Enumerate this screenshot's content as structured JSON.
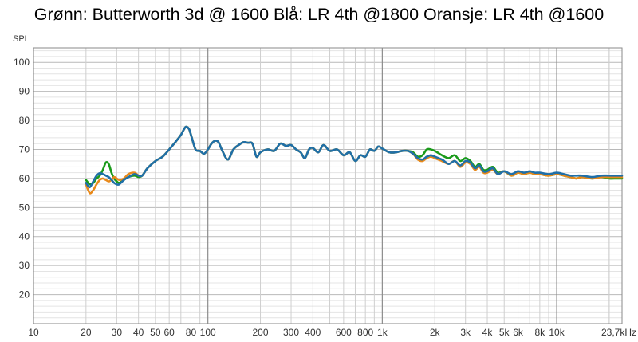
{
  "chart_data": {
    "type": "line",
    "title": "Grønn: Butterworth 3d @ 1600 Blå: LR 4th @1800 Oransje: LR 4th @1600",
    "ylabel": "SPL",
    "xlabel": "",
    "xscale": "log",
    "xlim": [
      10,
      23700
    ],
    "ylim": [
      10,
      105
    ],
    "grid": true,
    "legend": "none",
    "y_ticks": [
      20,
      30,
      40,
      50,
      60,
      70,
      80,
      90,
      100
    ],
    "x_ticks": [
      {
        "v": 10,
        "label": "10"
      },
      {
        "v": 20,
        "label": "20"
      },
      {
        "v": 30,
        "label": "30"
      },
      {
        "v": 40,
        "label": "40"
      },
      {
        "v": 50,
        "label": "50"
      },
      {
        "v": 60,
        "label": "60"
      },
      {
        "v": 80,
        "label": "80"
      },
      {
        "v": 100,
        "label": "100"
      },
      {
        "v": 200,
        "label": "200"
      },
      {
        "v": 300,
        "label": "300"
      },
      {
        "v": 400,
        "label": "400"
      },
      {
        "v": 600,
        "label": "600"
      },
      {
        "v": 800,
        "label": "800"
      },
      {
        "v": 1000,
        "label": "1k"
      },
      {
        "v": 2000,
        "label": "2k"
      },
      {
        "v": 3000,
        "label": "3k"
      },
      {
        "v": 4000,
        "label": "4k"
      },
      {
        "v": 5000,
        "label": "5k"
      },
      {
        "v": 6000,
        "label": "6k"
      },
      {
        "v": 8000,
        "label": "8k"
      },
      {
        "v": 10000,
        "label": "10k"
      },
      {
        "v": 23700,
        "label": "23,7kHz"
      }
    ],
    "series": [
      {
        "color": "#1a9a1a",
        "x": [
          20,
          21,
          22,
          23,
          24,
          25,
          26,
          27,
          28,
          29,
          30,
          31,
          33,
          35,
          38,
          40,
          42,
          45,
          50,
          55,
          60,
          65,
          70,
          73,
          75,
          78,
          80,
          85,
          90,
          95,
          100,
          105,
          110,
          115,
          120,
          130,
          140,
          150,
          160,
          170,
          180,
          190,
          200,
          220,
          240,
          260,
          280,
          300,
          320,
          340,
          360,
          380,
          400,
          430,
          460,
          500,
          550,
          600,
          650,
          700,
          750,
          800,
          850,
          900,
          950,
          1000,
          1100,
          1200,
          1300,
          1400,
          1500,
          1600,
          1700,
          1800,
          1900,
          2000,
          2200,
          2400,
          2600,
          2800,
          3000,
          3200,
          3400,
          3600,
          3800,
          4000,
          4300,
          4600,
          5000,
          5500,
          6000,
          6500,
          7000,
          7500,
          8000,
          9000,
          10000,
          11000,
          12000,
          13000,
          14000,
          16000,
          18000,
          20000,
          22000,
          23700
        ],
        "y": [
          59.5,
          58,
          58.5,
          60,
          61,
          63,
          65.5,
          65,
          62,
          60,
          59,
          58.5,
          59.5,
          60.5,
          61,
          60.5,
          61,
          63.5,
          66,
          67.5,
          70,
          72.5,
          75,
          77,
          77.8,
          77,
          75,
          70,
          69.5,
          68.5,
          70,
          72,
          73,
          72.5,
          70,
          66.5,
          70,
          71.5,
          72.5,
          72.3,
          72,
          67.5,
          69,
          70,
          69.5,
          72,
          71.2,
          71.5,
          70,
          69,
          67,
          70,
          70.5,
          69,
          71.5,
          69.5,
          70,
          68,
          69,
          66,
          68,
          67.5,
          70,
          69.5,
          71,
          70.3,
          69,
          69,
          69.5,
          69.5,
          69,
          67.5,
          68,
          70,
          70,
          69.5,
          68,
          67,
          68,
          66,
          67,
          66,
          64,
          65,
          63,
          63,
          64,
          62,
          62.5,
          61,
          62,
          61.5,
          62,
          61.5,
          61.5,
          61,
          61.5,
          61,
          60.5,
          60,
          60.5,
          60,
          60.5,
          60,
          60,
          60
        ]
      },
      {
        "color": "#e8891a",
        "x": [
          20,
          21,
          22,
          23,
          24,
          25,
          26,
          27,
          28,
          29,
          30,
          31,
          33,
          35,
          38,
          40,
          42,
          45,
          50,
          55,
          60,
          65,
          70,
          73,
          75,
          78,
          80,
          85,
          90,
          95,
          100,
          105,
          110,
          115,
          120,
          130,
          140,
          150,
          160,
          170,
          180,
          190,
          200,
          220,
          240,
          260,
          280,
          300,
          320,
          340,
          360,
          380,
          400,
          430,
          460,
          500,
          550,
          600,
          650,
          700,
          750,
          800,
          850,
          900,
          950,
          1000,
          1100,
          1200,
          1300,
          1400,
          1500,
          1600,
          1700,
          1800,
          1900,
          2000,
          2200,
          2400,
          2600,
          2800,
          3000,
          3200,
          3400,
          3600,
          3800,
          4000,
          4300,
          4600,
          5000,
          5500,
          6000,
          6500,
          7000,
          7500,
          8000,
          9000,
          10000,
          11000,
          12000,
          13000,
          14000,
          16000,
          18000,
          20000,
          22000,
          23700
        ],
        "y": [
          58,
          55,
          56,
          58,
          59.5,
          60,
          59.5,
          59,
          59.5,
          60.5,
          60,
          59.5,
          60,
          61.5,
          62,
          61,
          61,
          63.5,
          66,
          67.5,
          70,
          72.5,
          75,
          77,
          77.8,
          77,
          75,
          70,
          69.5,
          68.5,
          70,
          72,
          73,
          72.5,
          70,
          66.5,
          70,
          71.5,
          72.5,
          72.3,
          72,
          67.5,
          69,
          70,
          69.5,
          72,
          71.2,
          71.5,
          70,
          69,
          67,
          70,
          70.5,
          69,
          71.5,
          69.5,
          70,
          68,
          69,
          66,
          68,
          67.5,
          70,
          69.5,
          71,
          70.3,
          69,
          69,
          69.5,
          69.5,
          68.5,
          66.5,
          66,
          67,
          67.5,
          67,
          66,
          65,
          66,
          64,
          65.5,
          65,
          63,
          64,
          62,
          62,
          63,
          61.5,
          62.5,
          61,
          62,
          61.5,
          62,
          61.5,
          61.5,
          61,
          61.5,
          61,
          60.5,
          60,
          60.5,
          60,
          60.5,
          60.5,
          60.5,
          60.5
        ]
      },
      {
        "color": "#1f6fa8",
        "x": [
          20,
          21,
          22,
          23,
          24,
          25,
          26,
          27,
          28,
          29,
          30,
          31,
          33,
          35,
          38,
          40,
          42,
          45,
          50,
          55,
          60,
          65,
          70,
          73,
          75,
          78,
          80,
          85,
          90,
          95,
          100,
          105,
          110,
          115,
          120,
          130,
          140,
          150,
          160,
          170,
          180,
          190,
          200,
          220,
          240,
          260,
          280,
          300,
          320,
          340,
          360,
          380,
          400,
          430,
          460,
          500,
          550,
          600,
          650,
          700,
          750,
          800,
          850,
          900,
          950,
          1000,
          1100,
          1200,
          1300,
          1400,
          1500,
          1600,
          1700,
          1800,
          1900,
          2000,
          2200,
          2400,
          2600,
          2800,
          3000,
          3200,
          3400,
          3600,
          3800,
          4000,
          4300,
          4600,
          5000,
          5500,
          6000,
          6500,
          7000,
          7500,
          8000,
          9000,
          10000,
          11000,
          12000,
          13000,
          14000,
          16000,
          18000,
          20000,
          22000,
          23700
        ],
        "y": [
          58.5,
          57,
          59,
          61,
          61.8,
          61.5,
          61,
          60.5,
          59.5,
          58.5,
          58,
          58,
          59.5,
          60.5,
          61.5,
          61,
          61,
          63.5,
          66,
          67.5,
          70,
          72.5,
          75,
          77,
          77.8,
          77,
          75,
          70,
          69.5,
          68.5,
          70,
          72,
          73,
          72.5,
          70,
          66.5,
          70,
          71.5,
          72.5,
          72.3,
          72,
          67.5,
          69,
          70,
          69.5,
          72,
          71.2,
          71.5,
          70,
          69,
          67,
          70,
          70.5,
          69,
          71.5,
          69.5,
          70,
          68,
          69,
          66,
          68,
          67.5,
          70,
          69.5,
          71,
          70.3,
          69,
          69,
          69.5,
          69.5,
          68.5,
          67,
          66.5,
          67.5,
          68,
          67.5,
          66.5,
          65,
          66,
          64.5,
          66,
          65.5,
          63.5,
          64.5,
          62.5,
          62.5,
          63.5,
          61.5,
          62.5,
          61.5,
          62.5,
          62,
          62.5,
          62,
          62,
          61.5,
          62,
          61.5,
          61,
          61,
          61,
          60.5,
          61,
          61,
          61,
          61
        ]
      }
    ]
  }
}
